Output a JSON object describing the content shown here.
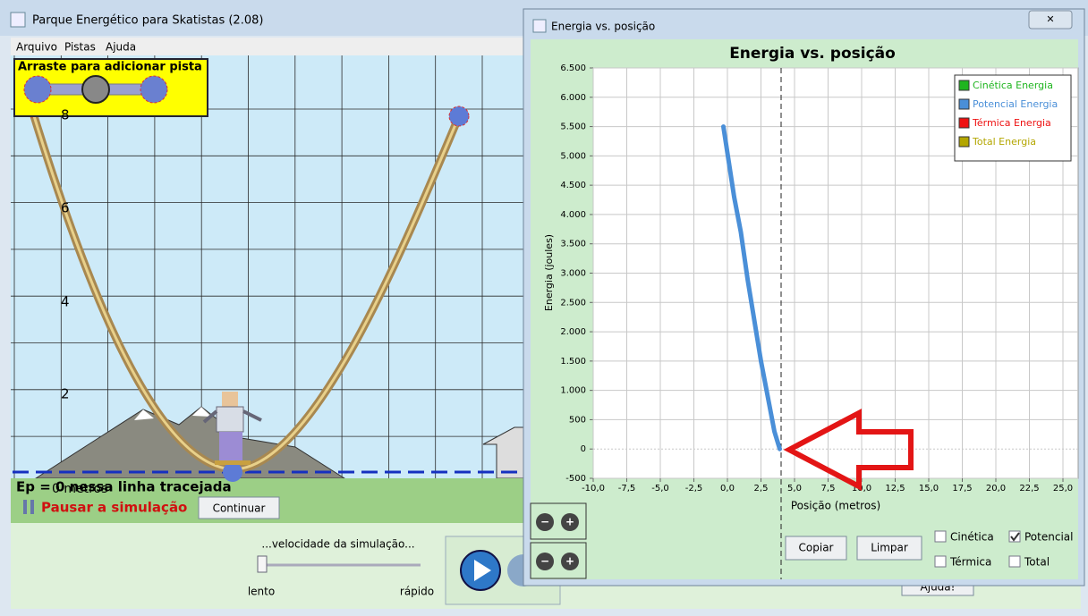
{
  "main_window": {
    "title": "Parque Energético para Skatistas (2.08)",
    "menu": [
      "Arquivo",
      "Pistas",
      "Ajuda"
    ],
    "track_palette_label": "Arraste para adicionar pista",
    "height_labels": [
      "8",
      "6",
      "4",
      "2"
    ],
    "zero_label": "0 metros",
    "ep_note": "Ep = 0 nessa linha tracejada",
    "pause_label": "Pausar a simulação",
    "continue_button": "Continuar",
    "speed_label": "...velocidade da simulação...",
    "slow_label": "lento",
    "fast_label": "rápido",
    "help_button": "Ajuda!"
  },
  "chart_window": {
    "title": "Energia vs. posição",
    "copy_button": "Copiar",
    "clear_button": "Limpar",
    "checkboxes": [
      {
        "label": "Cinética",
        "checked": false
      },
      {
        "label": "Potencial",
        "checked": true
      },
      {
        "label": "Térmica",
        "checked": false
      },
      {
        "label": "Total",
        "checked": false
      }
    ]
  },
  "chart_data": {
    "type": "line",
    "title": "Energia vs. posição",
    "xlabel": "Posição (metros)",
    "ylabel": "Energia (joules)",
    "xlim": [
      -10,
      26
    ],
    "ylim": [
      -500,
      6500
    ],
    "xticks": [
      {
        "value": -10,
        "label": "-10,0"
      },
      {
        "value": -7.5,
        "label": "-7,5"
      },
      {
        "value": -5,
        "label": "-5,0"
      },
      {
        "value": -2.5,
        "label": "-2,5"
      },
      {
        "value": 0,
        "label": "0,0"
      },
      {
        "value": 2.5,
        "label": "2,5"
      },
      {
        "value": 5,
        "label": "5,0"
      },
      {
        "value": 7.5,
        "label": "7,5"
      },
      {
        "value": 10,
        "label": "10,0"
      },
      {
        "value": 12.5,
        "label": "12,5"
      },
      {
        "value": 15,
        "label": "15,0"
      },
      {
        "value": 17.5,
        "label": "17,5"
      },
      {
        "value": 20,
        "label": "20,0"
      },
      {
        "value": 22.5,
        "label": "22,5"
      },
      {
        "value": 25,
        "label": "25,0"
      }
    ],
    "yticks": [
      -500,
      0,
      500,
      {
        "value": 1000,
        "label": "1.000"
      },
      {
        "value": 1500,
        "label": "1.500"
      },
      {
        "value": 2000,
        "label": "2.000"
      },
      {
        "value": 2500,
        "label": "2.500"
      },
      {
        "value": 3000,
        "label": "3.000"
      },
      {
        "value": 3500,
        "label": "3.500"
      },
      {
        "value": 4000,
        "label": "4.000"
      },
      {
        "value": 4500,
        "label": "4.500"
      },
      {
        "value": 5000,
        "label": "5.000"
      },
      {
        "value": 5500,
        "label": "5.500"
      },
      {
        "value": 6000,
        "label": "6.000"
      },
      {
        "value": 6500,
        "label": "6.500"
      }
    ],
    "grid": true,
    "legend_position": "upper right",
    "cursor_x": 4,
    "series": [
      {
        "name": "Cinética Energia",
        "color": "#1fb51f",
        "x": [],
        "values": []
      },
      {
        "name": "Potencial Energia",
        "color": "#4a8fd8",
        "x": [
          -0.3,
          0,
          0.5,
          1,
          1.5,
          2,
          2.5,
          3,
          3.5,
          3.9
        ],
        "values": [
          5500,
          5050,
          4300,
          3700,
          2900,
          2200,
          1500,
          900,
          300,
          0
        ]
      },
      {
        "name": "Térmica Energia",
        "color": "#ee1111",
        "x": [],
        "values": []
      },
      {
        "name": "Total Energia",
        "color": "#b3a600",
        "x": [],
        "values": []
      }
    ]
  }
}
